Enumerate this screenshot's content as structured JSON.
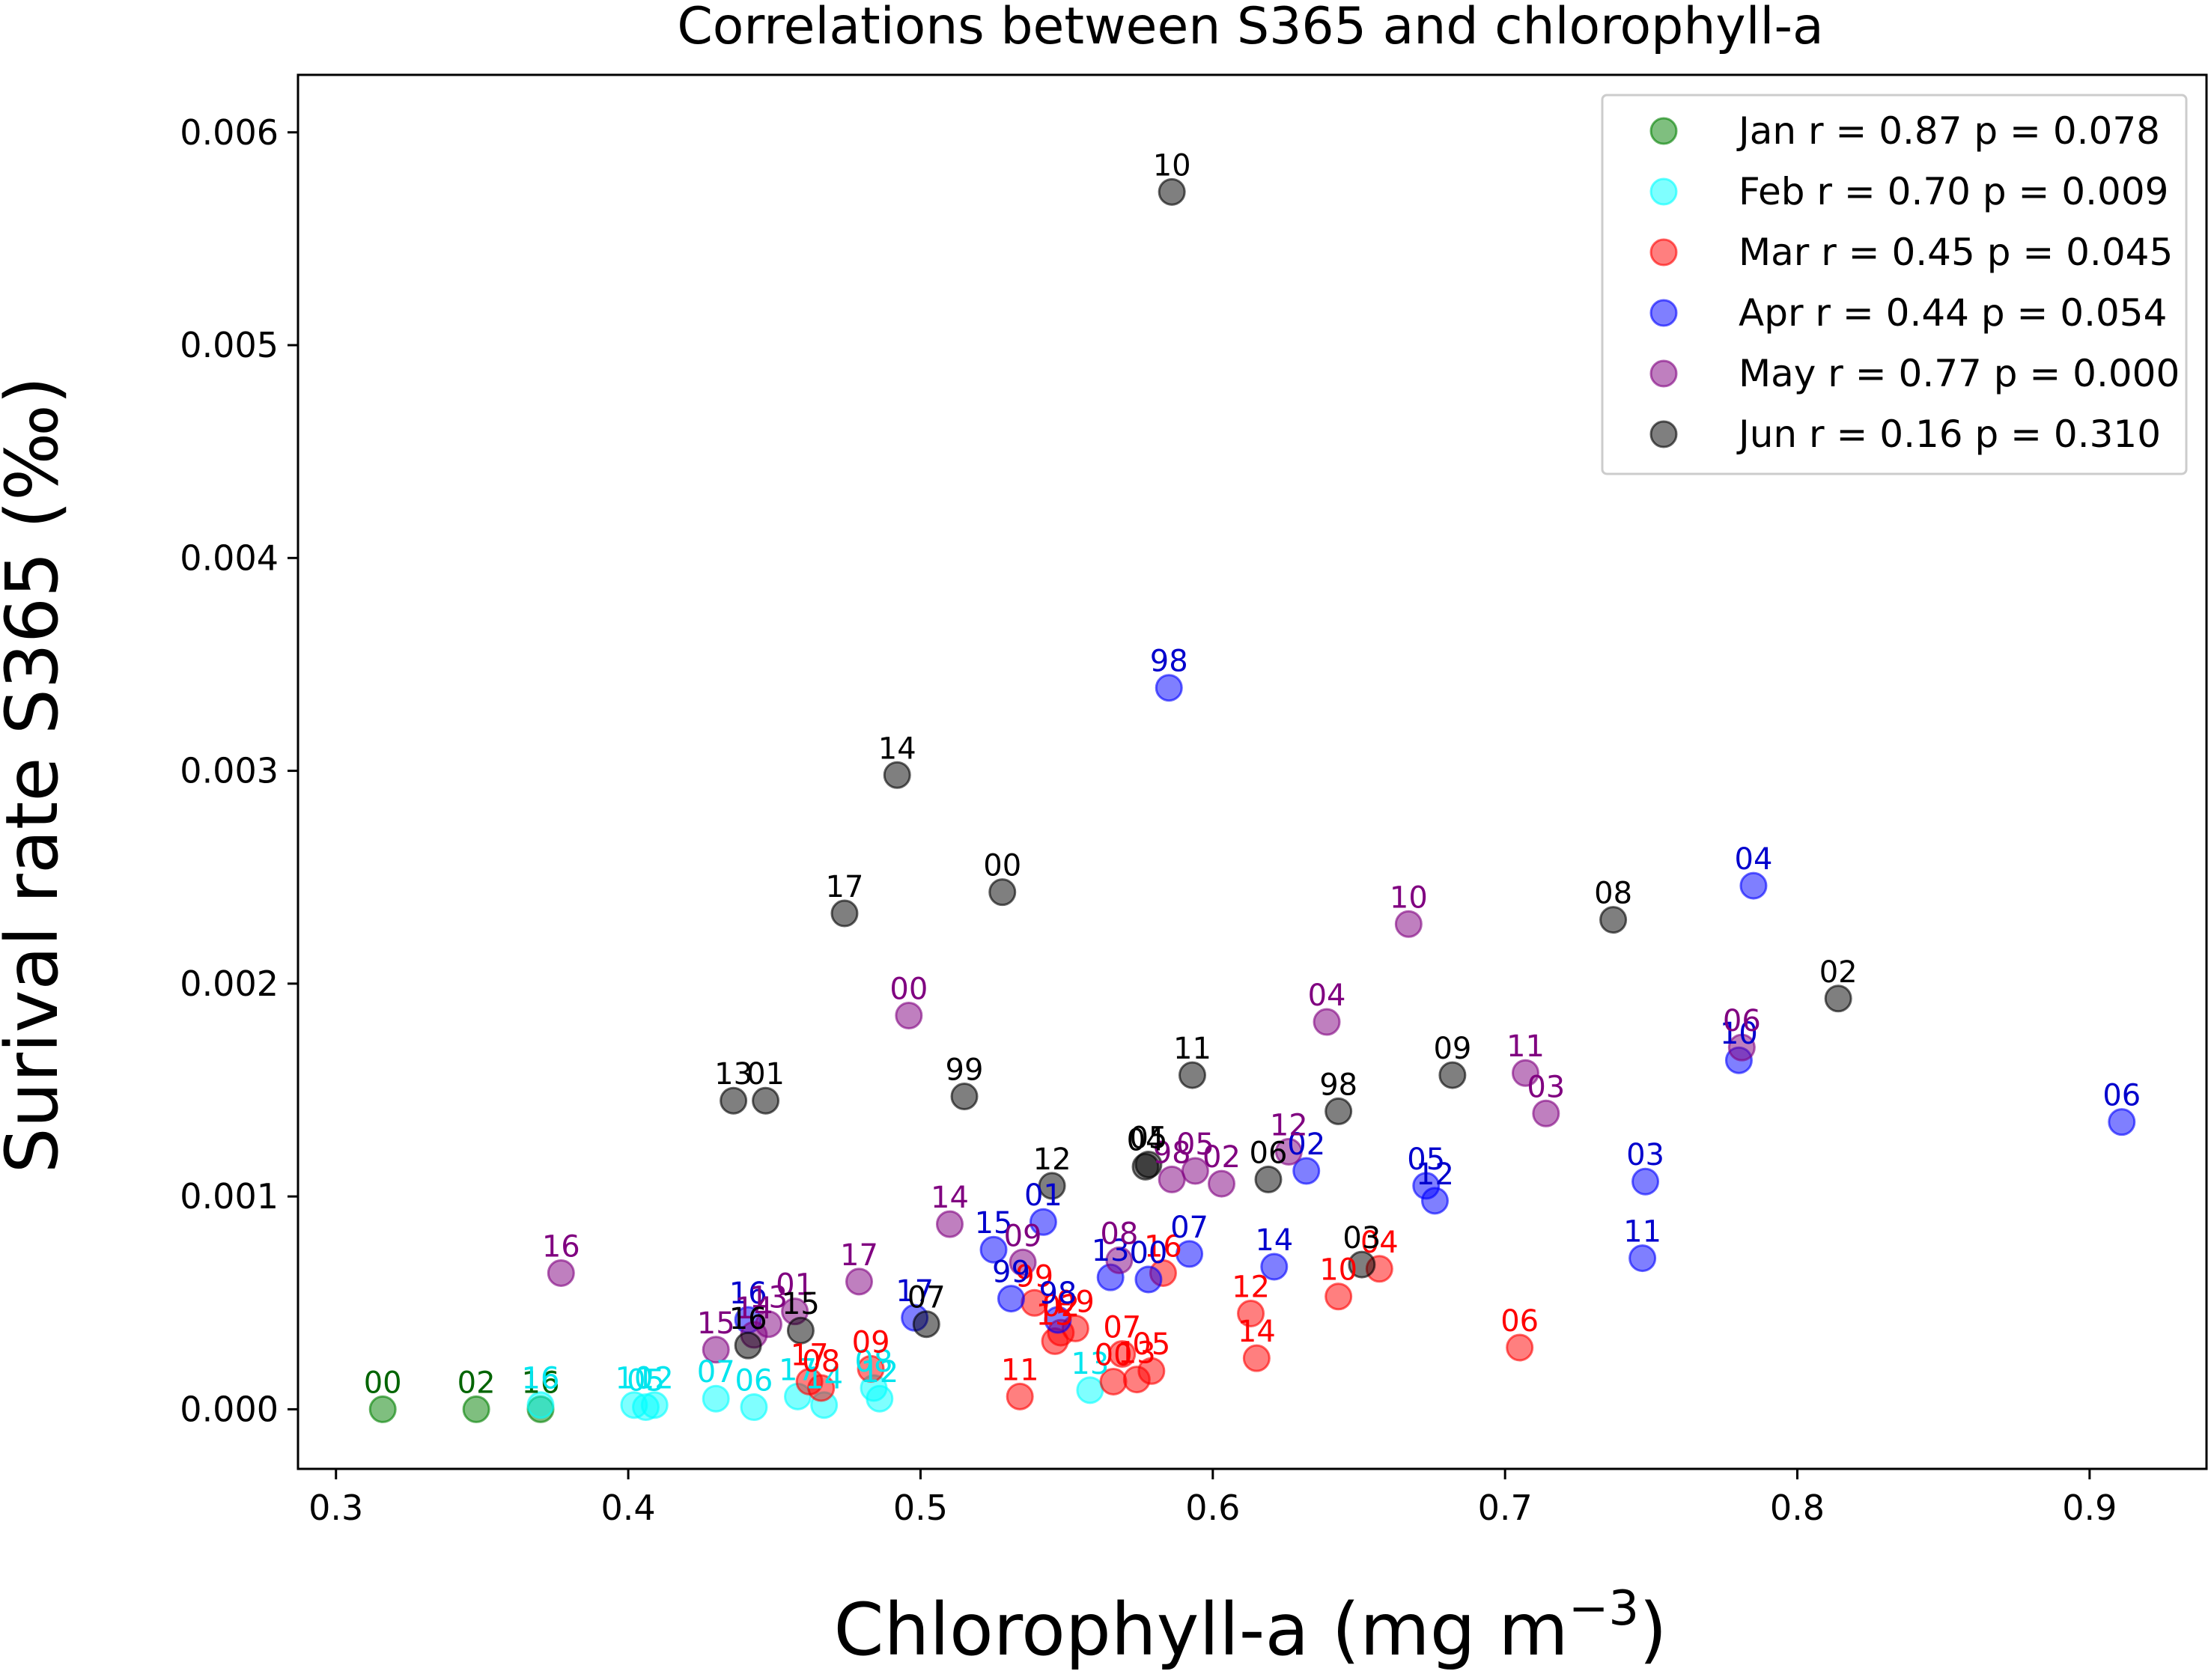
{
  "chart_data": {
    "type": "scatter",
    "title": "Correlations between S365 and chlorophyll-a",
    "xlabel": "Chlorophyll-a (mg m",
    "xlabel_sup": "−3",
    "xlabel_tail": ")",
    "ylabel": "Surival rate S365 (‰)",
    "xlim": [
      0.287,
      0.94
    ],
    "ylim": [
      -0.00028,
      0.00627
    ],
    "xticks": [
      0.3,
      0.4,
      0.5,
      0.6,
      0.7,
      0.8,
      0.9
    ],
    "xtick_labels": [
      "0.3",
      "0.4",
      "0.5",
      "0.6",
      "0.7",
      "0.8",
      "0.9"
    ],
    "yticks": [
      0,
      0.001,
      0.002,
      0.003,
      0.004,
      0.005,
      0.006
    ],
    "ytick_labels": [
      "0.000",
      "0.001",
      "0.002",
      "0.003",
      "0.004",
      "0.005",
      "0.006"
    ],
    "legend_position": "top-right",
    "series": [
      {
        "name": "Jan",
        "legend": "Jan r = 0.87 p = 0.078",
        "color": "#008000",
        "label_color": "#006400",
        "points": [
          {
            "x": 0.316,
            "y": 0.0,
            "label": "00"
          },
          {
            "x": 0.348,
            "y": 0.0,
            "label": "02"
          },
          {
            "x": 0.37,
            "y": 0.0,
            "label": "16"
          }
        ]
      },
      {
        "name": "Feb",
        "legend": "Feb r = 0.70 p = 0.009",
        "color": "#00ffff",
        "label_color": "#00e5ee",
        "points": [
          {
            "x": 0.37,
            "y": 2e-05,
            "label": "16"
          },
          {
            "x": 0.402,
            "y": 2e-05,
            "label": "10"
          },
          {
            "x": 0.406,
            "y": 1e-05,
            "label": "05"
          },
          {
            "x": 0.409,
            "y": 2e-05,
            "label": "12"
          },
          {
            "x": 0.43,
            "y": 5e-05,
            "label": "07"
          },
          {
            "x": 0.443,
            "y": 1e-05,
            "label": "06"
          },
          {
            "x": 0.458,
            "y": 6e-05,
            "label": "17"
          },
          {
            "x": 0.467,
            "y": 2e-05,
            "label": "14"
          },
          {
            "x": 0.484,
            "y": 0.0001,
            "label": "08"
          },
          {
            "x": 0.486,
            "y": 5e-05,
            "label": "12"
          },
          {
            "x": 0.558,
            "y": 9e-05,
            "label": "13"
          }
        ]
      },
      {
        "name": "Mar",
        "legend": "Mar r = 0.45 p = 0.045",
        "color": "#ff0000",
        "label_color": "#ff0000",
        "points": [
          {
            "x": 0.462,
            "y": 0.00013,
            "label": "17"
          },
          {
            "x": 0.466,
            "y": 0.0001,
            "label": "08"
          },
          {
            "x": 0.483,
            "y": 0.00019,
            "label": "09"
          },
          {
            "x": 0.534,
            "y": 6e-05,
            "label": "11"
          },
          {
            "x": 0.539,
            "y": 0.0005,
            "label": "99"
          },
          {
            "x": 0.546,
            "y": 0.00032,
            "label": "15"
          },
          {
            "x": 0.548,
            "y": 0.00036,
            "label": "02"
          },
          {
            "x": 0.553,
            "y": 0.00038,
            "label": "09"
          },
          {
            "x": 0.566,
            "y": 0.00013,
            "label": "00"
          },
          {
            "x": 0.569,
            "y": 0.00026,
            "label": "07"
          },
          {
            "x": 0.574,
            "y": 0.00014,
            "label": "13"
          },
          {
            "x": 0.579,
            "y": 0.00018,
            "label": "05"
          },
          {
            "x": 0.583,
            "y": 0.00064,
            "label": "16"
          },
          {
            "x": 0.613,
            "y": 0.00045,
            "label": "12"
          },
          {
            "x": 0.615,
            "y": 0.00024,
            "label": "14"
          },
          {
            "x": 0.643,
            "y": 0.00053,
            "label": "10"
          },
          {
            "x": 0.657,
            "y": 0.00066,
            "label": "04"
          },
          {
            "x": 0.705,
            "y": 0.00029,
            "label": "06"
          }
        ]
      },
      {
        "name": "Apr",
        "legend": "Apr r = 0.44 p = 0.054",
        "color": "#0000ff",
        "label_color": "#0000cd",
        "points": [
          {
            "x": 0.585,
            "y": 0.00339,
            "label": "98"
          },
          {
            "x": 0.785,
            "y": 0.00246,
            "label": "04"
          },
          {
            "x": 0.78,
            "y": 0.00164,
            "label": "10"
          },
          {
            "x": 0.911,
            "y": 0.00135,
            "label": "06"
          },
          {
            "x": 0.748,
            "y": 0.00107,
            "label": "03"
          },
          {
            "x": 0.747,
            "y": 0.00071,
            "label": "11"
          },
          {
            "x": 0.673,
            "y": 0.00105,
            "label": "05"
          },
          {
            "x": 0.676,
            "y": 0.00098,
            "label": "12"
          },
          {
            "x": 0.632,
            "y": 0.00112,
            "label": "02"
          },
          {
            "x": 0.621,
            "y": 0.00067,
            "label": "14"
          },
          {
            "x": 0.592,
            "y": 0.00073,
            "label": "07"
          },
          {
            "x": 0.578,
            "y": 0.00061,
            "label": "00"
          },
          {
            "x": 0.565,
            "y": 0.00062,
            "label": "13"
          },
          {
            "x": 0.542,
            "y": 0.00088,
            "label": "01"
          },
          {
            "x": 0.525,
            "y": 0.00075,
            "label": "15"
          },
          {
            "x": 0.531,
            "y": 0.00052,
            "label": "99"
          },
          {
            "x": 0.547,
            "y": 0.00042,
            "label": "98"
          },
          {
            "x": 0.498,
            "y": 0.00043,
            "label": "17"
          },
          {
            "x": 0.441,
            "y": 0.00042,
            "label": "16"
          }
        ]
      },
      {
        "name": "May",
        "legend": "May r = 0.77 p = 0.000",
        "color": "#800080",
        "label_color": "#800080",
        "points": [
          {
            "x": 0.377,
            "y": 0.00064,
            "label": "16"
          },
          {
            "x": 0.43,
            "y": 0.00028,
            "label": "15"
          },
          {
            "x": 0.443,
            "y": 0.00035,
            "label": "14"
          },
          {
            "x": 0.448,
            "y": 0.0004,
            "label": "13"
          },
          {
            "x": 0.457,
            "y": 0.00046,
            "label": "01"
          },
          {
            "x": 0.479,
            "y": 0.0006,
            "label": "17"
          },
          {
            "x": 0.496,
            "y": 0.00185,
            "label": "00"
          },
          {
            "x": 0.51,
            "y": 0.00087,
            "label": "14"
          },
          {
            "x": 0.535,
            "y": 0.00069,
            "label": "09"
          },
          {
            "x": 0.568,
            "y": 0.0007,
            "label": "08"
          },
          {
            "x": 0.586,
            "y": 0.00108,
            "label": "98"
          },
          {
            "x": 0.594,
            "y": 0.00112,
            "label": "05"
          },
          {
            "x": 0.603,
            "y": 0.00106,
            "label": "02"
          },
          {
            "x": 0.626,
            "y": 0.00121,
            "label": "12"
          },
          {
            "x": 0.639,
            "y": 0.00182,
            "label": "04"
          },
          {
            "x": 0.667,
            "y": 0.00228,
            "label": "10"
          },
          {
            "x": 0.707,
            "y": 0.00158,
            "label": "11"
          },
          {
            "x": 0.714,
            "y": 0.00139,
            "label": "03"
          },
          {
            "x": 0.781,
            "y": 0.0017,
            "label": "06"
          }
        ]
      },
      {
        "name": "Jun",
        "legend": "Jun r = 0.16 p = 0.310",
        "color": "#000000",
        "label_color": "#000000",
        "points": [
          {
            "x": 0.586,
            "y": 0.00572,
            "label": "10"
          },
          {
            "x": 0.492,
            "y": 0.00298,
            "label": "14"
          },
          {
            "x": 0.528,
            "y": 0.00243,
            "label": "00"
          },
          {
            "x": 0.474,
            "y": 0.00233,
            "label": "17"
          },
          {
            "x": 0.737,
            "y": 0.0023,
            "label": "08"
          },
          {
            "x": 0.814,
            "y": 0.00193,
            "label": "02"
          },
          {
            "x": 0.593,
            "y": 0.00157,
            "label": "11"
          },
          {
            "x": 0.682,
            "y": 0.00157,
            "label": "09"
          },
          {
            "x": 0.515,
            "y": 0.00147,
            "label": "99"
          },
          {
            "x": 0.436,
            "y": 0.00145,
            "label": "13"
          },
          {
            "x": 0.447,
            "y": 0.00145,
            "label": "01"
          },
          {
            "x": 0.643,
            "y": 0.0014,
            "label": "98"
          },
          {
            "x": 0.577,
            "y": 0.00114,
            "label": "04"
          },
          {
            "x": 0.578,
            "y": 0.00115,
            "label": "05"
          },
          {
            "x": 0.545,
            "y": 0.00105,
            "label": "12"
          },
          {
            "x": 0.619,
            "y": 0.00108,
            "label": "06"
          },
          {
            "x": 0.651,
            "y": 0.00068,
            "label": "03"
          },
          {
            "x": 0.459,
            "y": 0.00037,
            "label": "15"
          },
          {
            "x": 0.441,
            "y": 0.0003,
            "label": "16"
          },
          {
            "x": 0.502,
            "y": 0.0004,
            "label": "07"
          }
        ]
      }
    ]
  }
}
